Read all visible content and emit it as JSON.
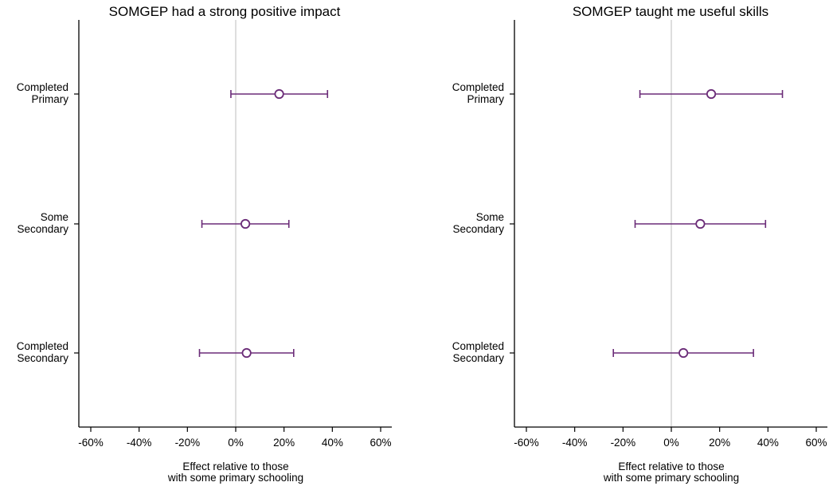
{
  "chart_data": [
    {
      "type": "scatter",
      "subtype": "coefficient-plot-with-confidence-intervals",
      "title": "SOMGEP had a strong positive impact",
      "xlabel": [
        "Effect relative to those",
        "with some primary schooling"
      ],
      "ylabel": "",
      "xlim": [
        -62,
        62
      ],
      "xticks": [
        -60,
        -40,
        -20,
        0,
        20,
        40,
        60
      ],
      "xtick_labels": [
        "-60%",
        "-40%",
        "-20%",
        "0%",
        "20%",
        "40%",
        "60%"
      ],
      "reference_line_x": 0,
      "grid": false,
      "color": "#6b2c78",
      "categories": [
        {
          "label": [
            "Completed",
            "Primary"
          ],
          "estimate": 18,
          "ci_low": -2,
          "ci_high": 38
        },
        {
          "label": [
            "Some",
            "Secondary"
          ],
          "estimate": 4,
          "ci_low": -14,
          "ci_high": 22
        },
        {
          "label": [
            "Completed",
            "Secondary"
          ],
          "estimate": 4.5,
          "ci_low": -15,
          "ci_high": 24
        }
      ]
    },
    {
      "type": "scatter",
      "subtype": "coefficient-plot-with-confidence-intervals",
      "title": "SOMGEP taught me useful skills",
      "xlabel": [
        "Effect relative to those",
        "with some primary schooling"
      ],
      "ylabel": "",
      "xlim": [
        -62,
        62
      ],
      "xticks": [
        -60,
        -40,
        -20,
        0,
        20,
        40,
        60
      ],
      "xtick_labels": [
        "-60%",
        "-40%",
        "-20%",
        "0%",
        "20%",
        "40%",
        "60%"
      ],
      "reference_line_x": 0,
      "grid": false,
      "color": "#6b2c78",
      "categories": [
        {
          "label": [
            "Completed",
            "Primary"
          ],
          "estimate": 16.5,
          "ci_low": -13,
          "ci_high": 46
        },
        {
          "label": [
            "Some",
            "Secondary"
          ],
          "estimate": 12,
          "ci_low": -15,
          "ci_high": 39
        },
        {
          "label": [
            "Completed",
            "Secondary"
          ],
          "estimate": 5,
          "ci_low": -24,
          "ci_high": 34
        }
      ]
    }
  ]
}
